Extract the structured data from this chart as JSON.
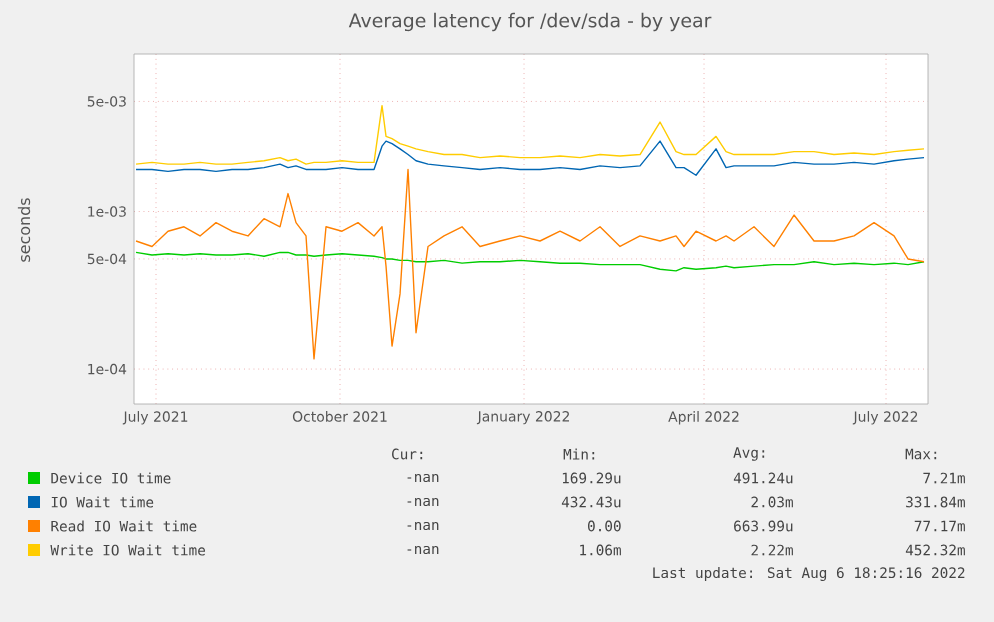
{
  "chart_data": {
    "type": "line",
    "title": "Average latency for /dev/sda - by year",
    "ylabel": "seconds",
    "log": "y",
    "grid": true,
    "legend": "bottom",
    "line_style": "solid",
    "xlim": [
      "2021-06-20",
      "2022-07-22"
    ],
    "ylim": [
      6e-05,
      0.01
    ],
    "xticks": [
      {
        "value": "2021-07-01",
        "label": "July 2021"
      },
      {
        "value": "2021-10-01",
        "label": "October 2021"
      },
      {
        "value": "2022-01-01",
        "label": "January 2022"
      },
      {
        "value": "2022-04-01",
        "label": "April 2022"
      },
      {
        "value": "2022-07-01",
        "label": "July 2022"
      }
    ],
    "yticks": [
      {
        "value": 0.0001,
        "label": "1e-04"
      },
      {
        "value": 0.0005,
        "label": "5e-04"
      },
      {
        "value": 0.001,
        "label": "1e-03"
      },
      {
        "value": 0.005,
        "label": "5e-03"
      }
    ],
    "x": [
      "2021-06-21",
      "2021-06-29",
      "2021-07-07",
      "2021-07-15",
      "2021-07-23",
      "2021-07-31",
      "2021-08-08",
      "2021-08-16",
      "2021-08-24",
      "2021-09-01",
      "2021-09-05",
      "2021-09-09",
      "2021-09-14",
      "2021-09-18",
      "2021-09-24",
      "2021-10-02",
      "2021-10-10",
      "2021-10-18",
      "2021-10-22",
      "2021-10-24",
      "2021-10-27",
      "2021-10-31",
      "2021-11-04",
      "2021-11-08",
      "2021-11-14",
      "2021-11-22",
      "2021-12-01",
      "2021-12-10",
      "2021-12-20",
      "2021-12-30",
      "2022-01-09",
      "2022-01-19",
      "2022-01-29",
      "2022-02-08",
      "2022-02-18",
      "2022-02-28",
      "2022-03-10",
      "2022-03-18",
      "2022-03-22",
      "2022-03-28",
      "2022-04-07",
      "2022-04-12",
      "2022-04-16",
      "2022-04-26",
      "2022-05-06",
      "2022-05-16",
      "2022-05-26",
      "2022-06-05",
      "2022-06-15",
      "2022-06-25",
      "2022-07-05",
      "2022-07-12",
      "2022-07-20"
    ],
    "series": [
      {
        "name": "Device IO time",
        "color": "#00cc00",
        "values": [
          0.00055,
          0.00053,
          0.00054,
          0.00053,
          0.00054,
          0.00053,
          0.00053,
          0.00054,
          0.00052,
          0.00055,
          0.00055,
          0.00053,
          0.00053,
          0.00052,
          0.00053,
          0.00054,
          0.00053,
          0.00052,
          0.00051,
          0.0005,
          0.0005,
          0.00049,
          0.00049,
          0.00048,
          0.00048,
          0.00049,
          0.00047,
          0.00048,
          0.00048,
          0.00049,
          0.00048,
          0.00047,
          0.00047,
          0.00046,
          0.00046,
          0.00046,
          0.00043,
          0.00042,
          0.00044,
          0.00043,
          0.00044,
          0.00045,
          0.00044,
          0.00045,
          0.00046,
          0.00046,
          0.00048,
          0.00046,
          0.00047,
          0.00046,
          0.00047,
          0.00046,
          0.00048
        ]
      },
      {
        "name": "IO Wait time",
        "color": "#0066b3",
        "values": [
          0.00185,
          0.00185,
          0.0018,
          0.00185,
          0.00185,
          0.0018,
          0.00185,
          0.00185,
          0.0019,
          0.002,
          0.0019,
          0.00195,
          0.00185,
          0.00185,
          0.00185,
          0.0019,
          0.00185,
          0.00185,
          0.0026,
          0.0028,
          0.0027,
          0.0025,
          0.0023,
          0.0021,
          0.002,
          0.00195,
          0.0019,
          0.00185,
          0.0019,
          0.00185,
          0.00185,
          0.0019,
          0.00185,
          0.00195,
          0.0019,
          0.00195,
          0.0028,
          0.0019,
          0.0019,
          0.0017,
          0.0025,
          0.0019,
          0.00195,
          0.00195,
          0.00195,
          0.00205,
          0.002,
          0.002,
          0.00205,
          0.002,
          0.0021,
          0.00215,
          0.0022
        ]
      },
      {
        "name": "Read IO Wait time",
        "color": "#ff8000",
        "values": [
          0.00065,
          0.0006,
          0.00075,
          0.0008,
          0.0007,
          0.00085,
          0.00075,
          0.0007,
          0.0009,
          0.0008,
          0.0013,
          0.00085,
          0.0007,
          0.000116,
          0.0008,
          0.00075,
          0.00085,
          0.0007,
          0.0008,
          0.00045,
          0.00014,
          0.0003,
          0.00185,
          0.00017,
          0.0006,
          0.0007,
          0.0008,
          0.0006,
          0.00065,
          0.0007,
          0.00065,
          0.00075,
          0.00065,
          0.0008,
          0.0006,
          0.0007,
          0.00065,
          0.0007,
          0.0006,
          0.00075,
          0.00065,
          0.0007,
          0.00065,
          0.0008,
          0.0006,
          0.00095,
          0.00065,
          0.00065,
          0.0007,
          0.00085,
          0.0007,
          0.0005,
          0.00048
        ]
      },
      {
        "name": "Write IO Wait time",
        "color": "#ffcc00",
        "values": [
          0.002,
          0.00205,
          0.002,
          0.002,
          0.00205,
          0.002,
          0.002,
          0.00205,
          0.0021,
          0.0022,
          0.0021,
          0.00215,
          0.002,
          0.00205,
          0.00205,
          0.0021,
          0.00205,
          0.00205,
          0.0047,
          0.003,
          0.0029,
          0.0027,
          0.0026,
          0.0025,
          0.0024,
          0.0023,
          0.0023,
          0.0022,
          0.00225,
          0.0022,
          0.0022,
          0.00225,
          0.0022,
          0.0023,
          0.00225,
          0.0023,
          0.0037,
          0.0024,
          0.0023,
          0.0023,
          0.003,
          0.0024,
          0.0023,
          0.0023,
          0.0023,
          0.0024,
          0.0024,
          0.0023,
          0.00235,
          0.0023,
          0.0024,
          0.00245,
          0.0025
        ]
      }
    ],
    "annotations": [
      "Cur:",
      "Min:",
      "Avg:",
      "Max:",
      "-nan",
      "169.29u",
      "491.24u",
      "7.21m",
      "-nan",
      "432.43u",
      "2.03m",
      "331.84m",
      "-nan",
      "0.00",
      "663.99u",
      "77.17m",
      "-nan",
      "1.06m",
      "2.22m",
      "452.32m",
      "Last update: Sat Aug  6 18:25:16 2022"
    ]
  }
}
